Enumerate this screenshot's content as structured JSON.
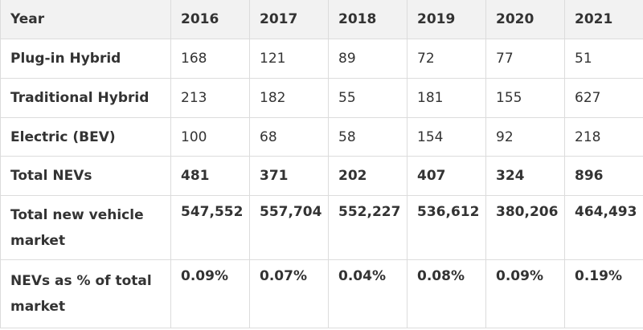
{
  "table": {
    "headers": [
      "Year",
      "2016",
      "2017",
      "2018",
      "2019",
      "2020",
      "2021"
    ],
    "rows": [
      {
        "label": "Plug-in Hybrid",
        "values": [
          "168",
          "121",
          "89",
          "72",
          "77",
          "51"
        ]
      },
      {
        "label": "Traditional Hybrid",
        "values": [
          "213",
          "182",
          "55",
          "181",
          "155",
          "627"
        ]
      },
      {
        "label": "Electric (BEV)",
        "values": [
          "100",
          "68",
          "58",
          "154",
          "92",
          "218"
        ]
      },
      {
        "label": "Total NEVs",
        "values": [
          "481",
          "371",
          "202",
          "407",
          "324",
          "896"
        ]
      },
      {
        "label": "Total new vehicle market",
        "values": [
          "547,552",
          "557,704",
          "552,227",
          "536,612",
          "380,206",
          "464,493"
        ]
      },
      {
        "label": "NEVs as % of total market",
        "values": [
          "0.09%",
          "0.07%",
          "0.04%",
          "0.08%",
          "0.09%",
          "0.19%"
        ]
      }
    ]
  }
}
